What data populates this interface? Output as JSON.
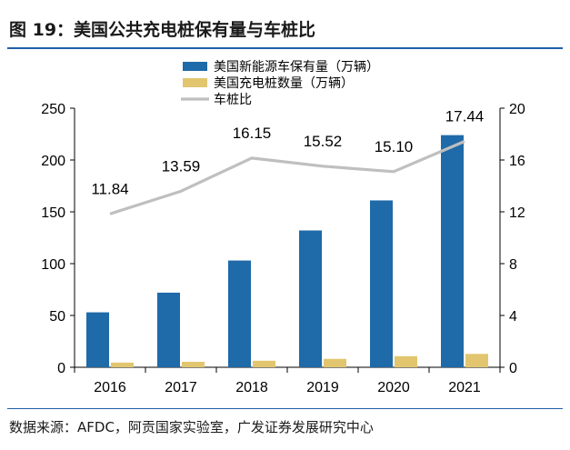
{
  "figure": {
    "title": "图 19：美国公共充电桩保有量与车桩比",
    "source": "数据来源：AFDC，阿贡国家实验室，广发证券发展研究中心"
  },
  "chart_data": {
    "type": "bar",
    "categories": [
      "2016",
      "2017",
      "2018",
      "2019",
      "2020",
      "2021"
    ],
    "series": [
      {
        "name": "美国新能源车保有量（万辆）",
        "kind": "bar",
        "axis": "left",
        "color": "#1f6aa8",
        "values": [
          53,
          72,
          103,
          132,
          161,
          224
        ]
      },
      {
        "name": "美国充电桩数量（万辆）",
        "kind": "bar",
        "axis": "left",
        "color": "#e2c66f",
        "values": [
          4.5,
          5.3,
          6.3,
          8.1,
          10.7,
          12.9
        ]
      },
      {
        "name": "车桩比",
        "kind": "line",
        "axis": "right",
        "color": "#bfbfbf",
        "values": [
          11.84,
          13.59,
          16.15,
          15.52,
          15.1,
          17.44
        ],
        "labels": [
          "11.84",
          "13.59",
          "16.15",
          "15.52",
          "15.10",
          "17.44"
        ]
      }
    ],
    "left_axis": {
      "min": 0,
      "max": 250,
      "ticks": [
        "0",
        "50",
        "100",
        "150",
        "200",
        "250"
      ]
    },
    "right_axis": {
      "min": 0,
      "max": 20,
      "ticks": [
        "0",
        "4",
        "8",
        "12",
        "16",
        "20"
      ]
    },
    "legend_position": "top-right",
    "grid": false
  }
}
